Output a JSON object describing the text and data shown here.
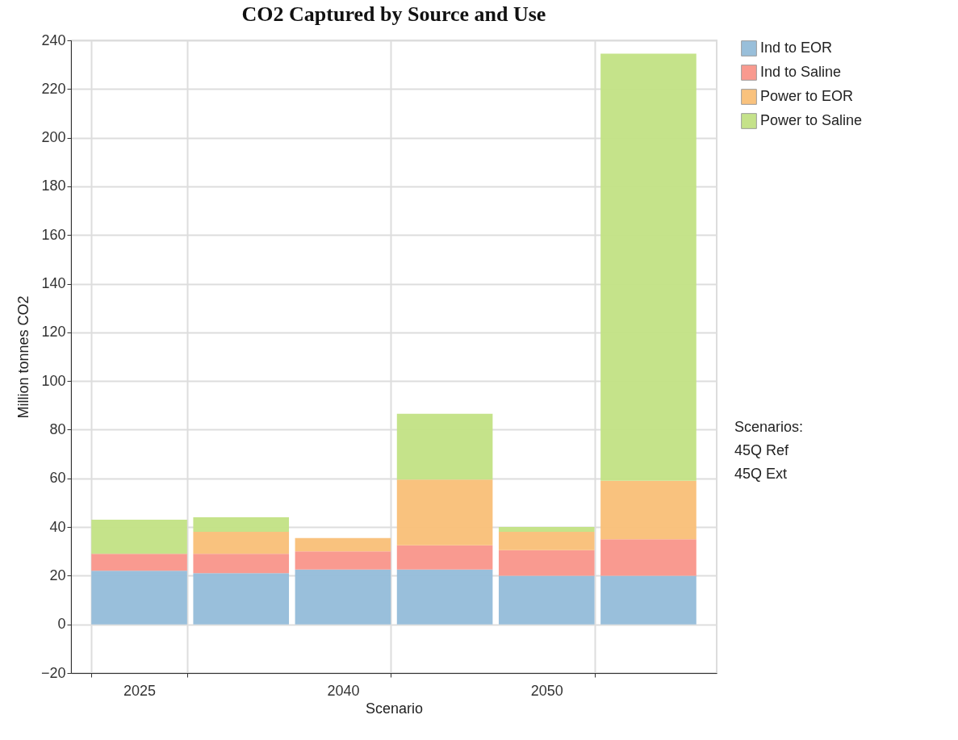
{
  "chart_data": {
    "type": "bar",
    "title": "CO2 Captured by Source and Use",
    "xlabel": "Scenario",
    "ylabel": "Million tonnes CO2",
    "categories": [
      "2025",
      null,
      "2040",
      null,
      "2050",
      null
    ],
    "stacked": true,
    "series": [
      {
        "name": "Ind to EOR",
        "color": "#94bcd9",
        "values": [
          22,
          21,
          22.5,
          22.5,
          20,
          20
        ]
      },
      {
        "name": "Ind to Saline",
        "color": "#f9958a",
        "values": [
          7,
          8,
          7.5,
          10,
          10.5,
          15
        ]
      },
      {
        "name": "Power to EOR",
        "color": "#f9bf77",
        "values": [
          0,
          9,
          5.5,
          27,
          7.5,
          24
        ]
      },
      {
        "name": "Power to Saline",
        "color": "#c2e184",
        "values": [
          14,
          6,
          0,
          27,
          2,
          175.5
        ]
      }
    ],
    "ylim": [
      -20,
      240
    ],
    "yticks": [
      -20,
      0,
      20,
      40,
      60,
      80,
      100,
      120,
      140,
      160,
      180,
      200,
      220,
      240
    ],
    "grid": true,
    "legend": "top right",
    "annotations": [
      "Scenarios:",
      "45Q Ref",
      "45Q Ext"
    ]
  }
}
